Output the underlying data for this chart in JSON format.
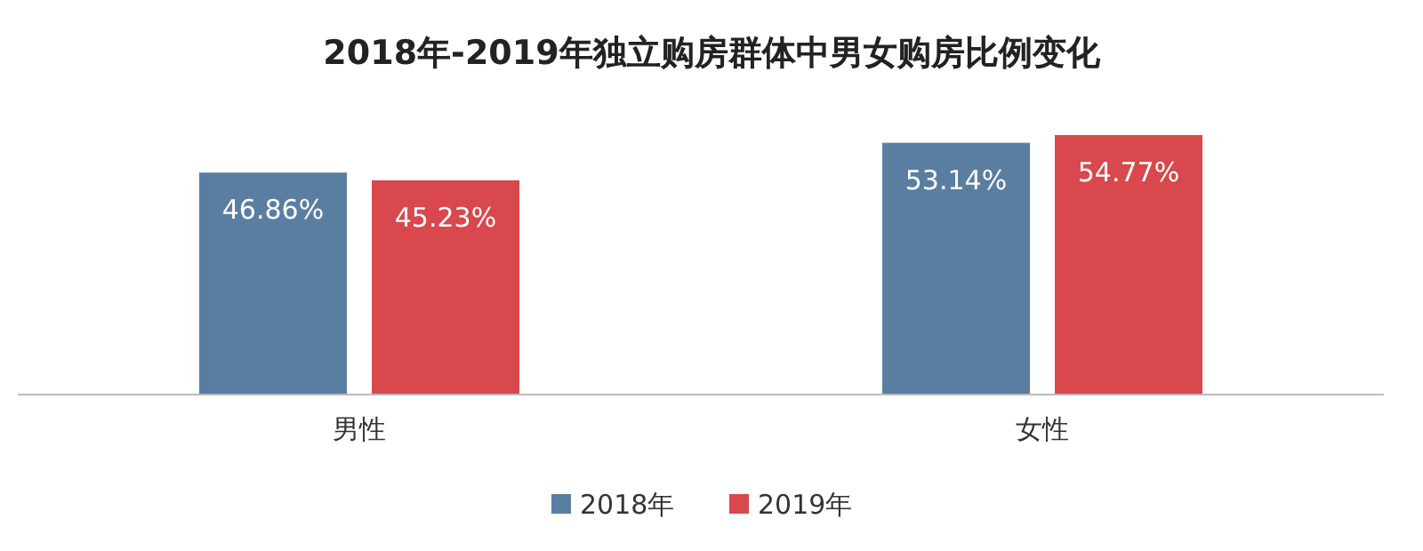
{
  "chart_data": {
    "type": "bar",
    "title": "2018年-2019年独立购房群体中男女购房比例变化",
    "categories": [
      "男性",
      "女性"
    ],
    "legend": "bottom",
    "series": [
      {
        "name": "2018年",
        "color": "#5a7ea2",
        "values": [
          46.86,
          53.14
        ],
        "value_labels": [
          "46.86%",
          "53.14%"
        ]
      },
      {
        "name": "2019年",
        "color": "#d9484c",
        "values": [
          45.23,
          54.77
        ],
        "value_labels": [
          "45.23%",
          "54.77%"
        ]
      }
    ]
  }
}
